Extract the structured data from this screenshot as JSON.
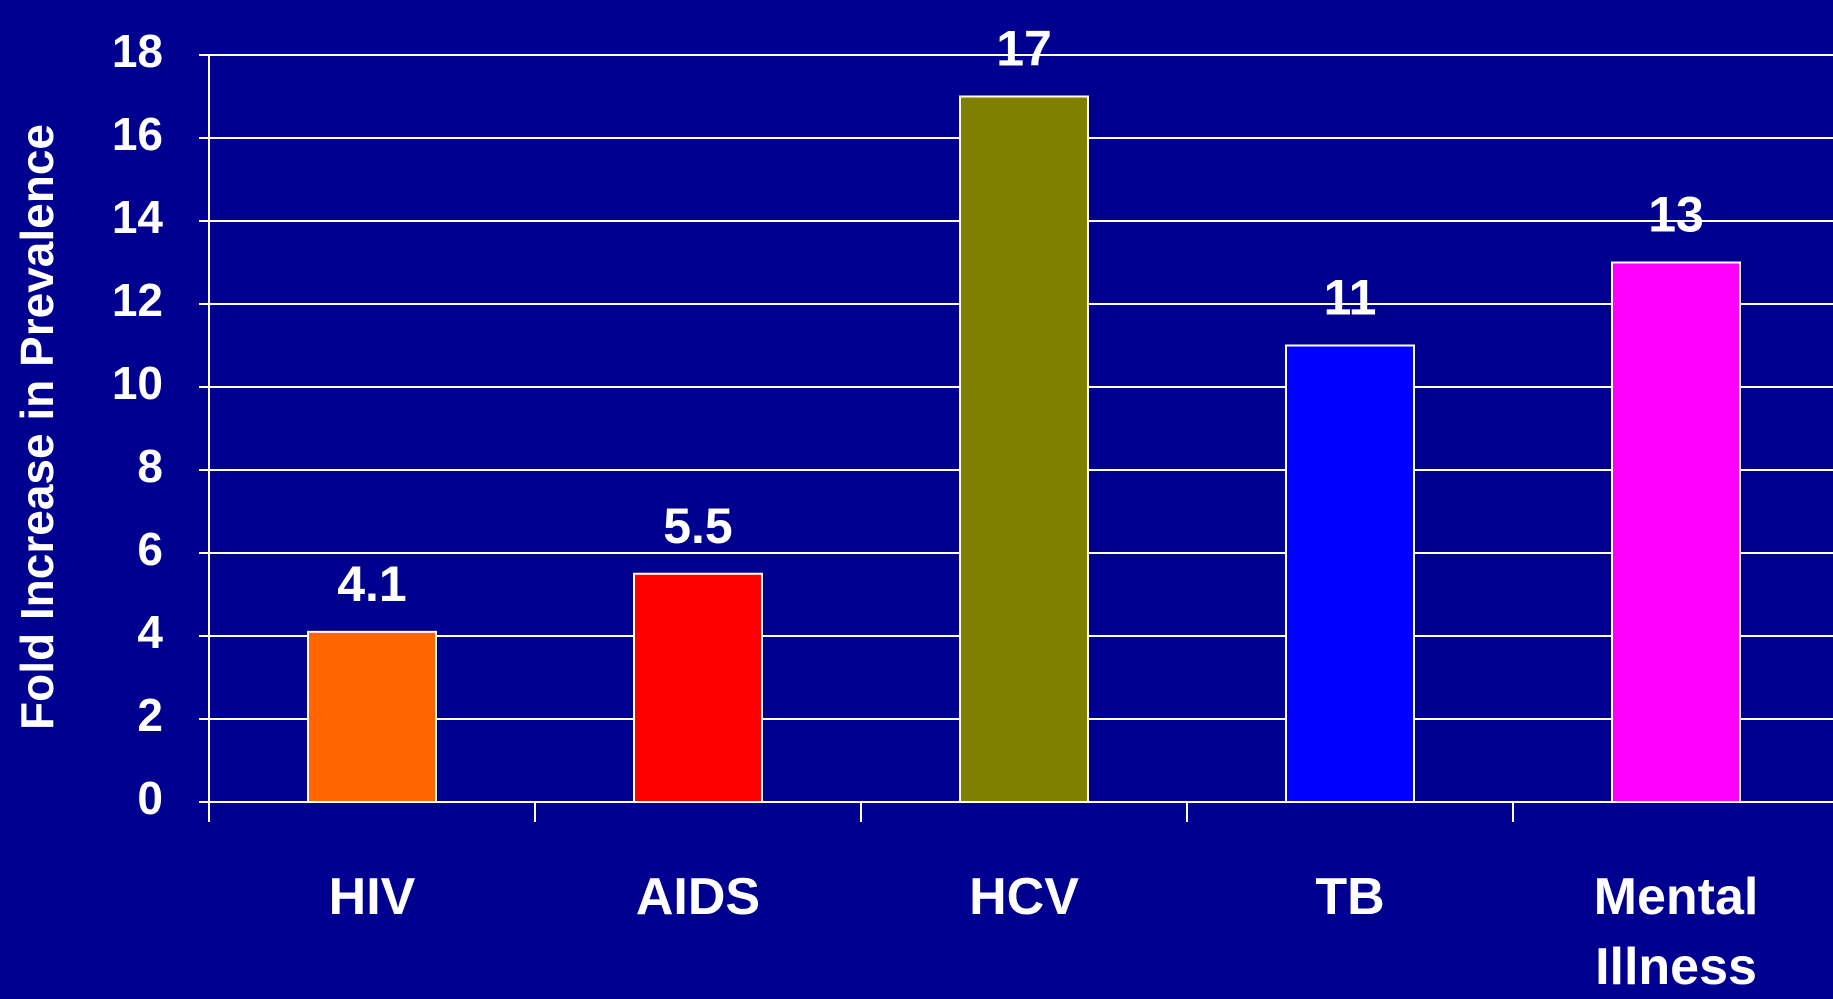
{
  "chart_data": {
    "type": "bar",
    "y_label": "Fold Increase in Prevalence",
    "categories": [
      "HIV",
      "AIDS",
      "HCV",
      "TB",
      "Mental Illness"
    ],
    "values": [
      4.1,
      5.5,
      17,
      11,
      13
    ],
    "colors": [
      "#ff6600",
      "#ff0000",
      "#808000",
      "#0000ff",
      "#ff00ff"
    ],
    "ylim": [
      0,
      18
    ],
    "yticks": [
      0,
      2,
      4,
      6,
      8,
      10,
      12,
      14,
      16,
      18
    ],
    "grid": true
  }
}
